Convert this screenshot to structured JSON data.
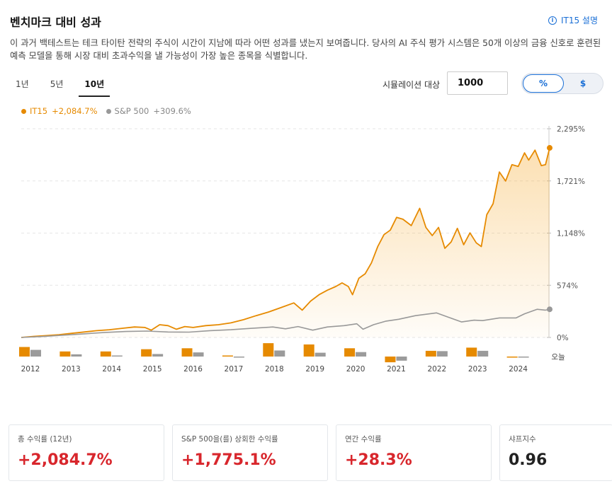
{
  "header": {
    "title": "벤치마크 대비 성과",
    "info_link": "IT15 설명"
  },
  "description": "이 과거 백테스트는 테크 타이탄 전략의 주식이 시간이 지남에 따라 어떤 성과를 냈는지 보여줍니다. 당사의 AI 주식 평가 시스템은 50개 이상의 금융 신호로 훈련된 예측 모델을 통해 시장 대비 초과수익을 낼 가능성이 가장 높은 종목을 식별합니다.",
  "period_tabs": [
    {
      "label": "1년",
      "active": false
    },
    {
      "label": "5년",
      "active": false
    },
    {
      "label": "10년",
      "active": true
    }
  ],
  "simulation": {
    "label": "시뮬레이션 대상",
    "value": "1000"
  },
  "toggle": {
    "percent": "%",
    "dollar": "$",
    "selected": "%"
  },
  "legend": [
    {
      "name": "IT15",
      "value": "+2,084.7%",
      "color": "#e68a00"
    },
    {
      "name": "S&P 500",
      "value": "+309.6%",
      "color": "#999999"
    }
  ],
  "chart_data": {
    "type": "line",
    "title": "",
    "y_ticks": [
      "2,295%",
      "1,721%",
      "1,148%",
      "574%",
      "0%"
    ],
    "ylim": [
      0,
      2295
    ],
    "x_start": 2012,
    "x_end_label": "오늘",
    "x_labels": [
      "2012",
      "2013",
      "2014",
      "2015",
      "2016",
      "2017",
      "2018",
      "2019",
      "2020",
      "2021",
      "2022",
      "2023",
      "2024",
      "오늘"
    ],
    "grid": true,
    "series": [
      {
        "name": "IT15",
        "color": "#e68a00",
        "fill": true,
        "points": [
          [
            2012.0,
            0
          ],
          [
            2012.3,
            12
          ],
          [
            2012.6,
            20
          ],
          [
            2012.9,
            30
          ],
          [
            2013.2,
            45
          ],
          [
            2013.5,
            60
          ],
          [
            2013.8,
            75
          ],
          [
            2014.1,
            85
          ],
          [
            2014.4,
            100
          ],
          [
            2014.7,
            115
          ],
          [
            2014.95,
            110
          ],
          [
            2015.1,
            80
          ],
          [
            2015.3,
            140
          ],
          [
            2015.5,
            130
          ],
          [
            2015.7,
            90
          ],
          [
            2015.9,
            120
          ],
          [
            2016.1,
            110
          ],
          [
            2016.4,
            130
          ],
          [
            2016.7,
            140
          ],
          [
            2017.0,
            160
          ],
          [
            2017.3,
            195
          ],
          [
            2017.6,
            240
          ],
          [
            2017.9,
            280
          ],
          [
            2018.2,
            330
          ],
          [
            2018.5,
            380
          ],
          [
            2018.7,
            300
          ],
          [
            2018.9,
            400
          ],
          [
            2019.1,
            470
          ],
          [
            2019.3,
            520
          ],
          [
            2019.5,
            560
          ],
          [
            2019.65,
            600
          ],
          [
            2019.8,
            560
          ],
          [
            2019.9,
            470
          ],
          [
            2020.05,
            650
          ],
          [
            2020.2,
            700
          ],
          [
            2020.35,
            820
          ],
          [
            2020.5,
            1000
          ],
          [
            2020.65,
            1130
          ],
          [
            2020.8,
            1180
          ],
          [
            2020.95,
            1320
          ],
          [
            2021.1,
            1300
          ],
          [
            2021.3,
            1230
          ],
          [
            2021.5,
            1420
          ],
          [
            2021.65,
            1210
          ],
          [
            2021.8,
            1120
          ],
          [
            2021.95,
            1210
          ],
          [
            2022.1,
            980
          ],
          [
            2022.25,
            1050
          ],
          [
            2022.4,
            1200
          ],
          [
            2022.55,
            1020
          ],
          [
            2022.7,
            1150
          ],
          [
            2022.85,
            1040
          ],
          [
            2022.97,
            1000
          ],
          [
            2023.1,
            1350
          ],
          [
            2023.25,
            1470
          ],
          [
            2023.4,
            1820
          ],
          [
            2023.55,
            1720
          ],
          [
            2023.7,
            1900
          ],
          [
            2023.85,
            1880
          ],
          [
            2024.0,
            2030
          ],
          [
            2024.1,
            1950
          ],
          [
            2024.25,
            2060
          ],
          [
            2024.4,
            1890
          ],
          [
            2024.5,
            1900
          ],
          [
            2024.6,
            2084.7
          ]
        ]
      },
      {
        "name": "S&P 500",
        "color": "#999999",
        "fill": false,
        "points": [
          [
            2012.0,
            0
          ],
          [
            2012.5,
            10
          ],
          [
            2013.0,
            25
          ],
          [
            2013.5,
            40
          ],
          [
            2014.0,
            55
          ],
          [
            2014.5,
            65
          ],
          [
            2015.0,
            70
          ],
          [
            2015.5,
            60
          ],
          [
            2016.0,
            58
          ],
          [
            2016.5,
            75
          ],
          [
            2017.0,
            85
          ],
          [
            2017.5,
            100
          ],
          [
            2018.0,
            115
          ],
          [
            2018.3,
            95
          ],
          [
            2018.6,
            120
          ],
          [
            2018.95,
            80
          ],
          [
            2019.3,
            115
          ],
          [
            2019.7,
            130
          ],
          [
            2020.0,
            150
          ],
          [
            2020.15,
            90
          ],
          [
            2020.4,
            140
          ],
          [
            2020.7,
            180
          ],
          [
            2021.0,
            200
          ],
          [
            2021.4,
            240
          ],
          [
            2021.9,
            270
          ],
          [
            2022.2,
            220
          ],
          [
            2022.5,
            170
          ],
          [
            2022.8,
            190
          ],
          [
            2023.0,
            185
          ],
          [
            2023.4,
            215
          ],
          [
            2023.8,
            215
          ],
          [
            2024.0,
            260
          ],
          [
            2024.3,
            310
          ],
          [
            2024.5,
            300
          ],
          [
            2024.6,
            309.6
          ]
        ]
      }
    ],
    "annual_bars": {
      "years": [
        2012,
        2013,
        2014,
        2015,
        2016,
        2017,
        2018,
        2019,
        2020,
        2021,
        2022,
        2023,
        2024
      ],
      "IT15": [
        30,
        16,
        16,
        23,
        26,
        2,
        42,
        38,
        26,
        -18,
        18,
        28,
        -1
      ],
      "S&P 500": [
        21,
        7,
        2,
        8,
        13,
        -2,
        19,
        12,
        14,
        -13,
        17,
        18,
        -1
      ]
    }
  },
  "stats": [
    {
      "label": "총 수익률 (12년)",
      "value": "+2,084.7%",
      "tone": "positive"
    },
    {
      "label": "S&P 500을(를) 상회한 수익률",
      "value": "+1,775.1%",
      "tone": "positive"
    },
    {
      "label": "연간 수익률",
      "value": "+28.3%",
      "tone": "positive"
    },
    {
      "label": "샤프지수",
      "value": "0.96",
      "tone": "neutral"
    }
  ]
}
